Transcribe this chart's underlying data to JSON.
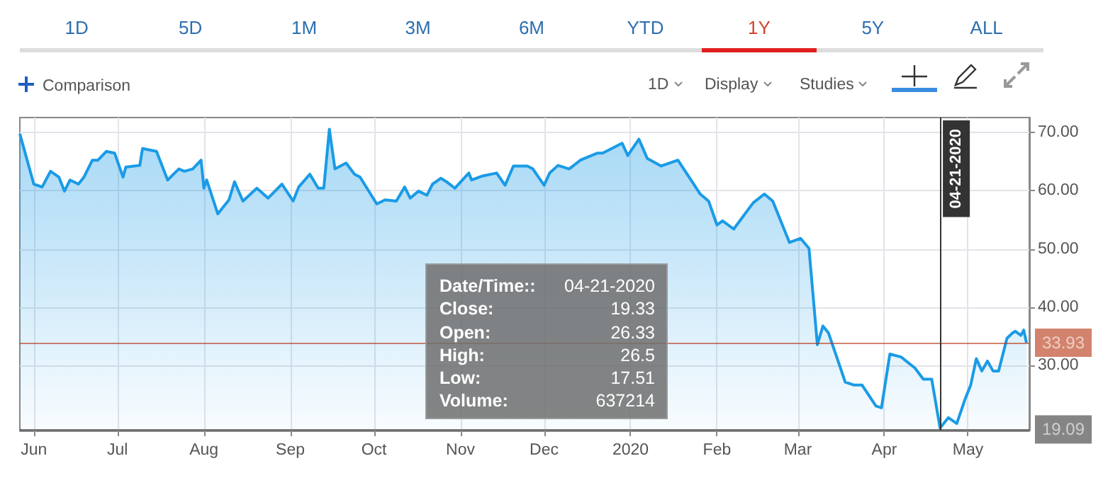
{
  "chart_data": {
    "type": "area",
    "x": [
      "2019-05-27",
      "2019-06-01",
      "2019-06-04",
      "2019-06-07",
      "2019-06-10",
      "2019-06-12",
      "2019-06-14",
      "2019-06-17",
      "2019-06-19",
      "2019-06-22",
      "2019-06-24",
      "2019-06-27",
      "2019-06-30",
      "2019-07-03",
      "2019-07-04",
      "2019-07-07",
      "2019-07-09",
      "2019-07-10",
      "2019-07-15",
      "2019-07-19",
      "2019-07-23",
      "2019-07-25",
      "2019-07-28",
      "2019-07-31",
      "2019-08-01",
      "2019-08-02",
      "2019-08-06",
      "2019-08-10",
      "2019-08-12",
      "2019-08-15",
      "2019-08-20",
      "2019-08-24",
      "2019-08-29",
      "2019-09-02",
      "2019-09-04",
      "2019-09-08",
      "2019-09-11",
      "2019-09-13",
      "2019-09-15",
      "2019-09-17",
      "2019-09-21",
      "2019-09-24",
      "2019-09-26",
      "2019-10-02",
      "2019-10-05",
      "2019-10-09",
      "2019-10-12",
      "2019-10-14",
      "2019-10-17",
      "2019-10-20",
      "2019-10-22",
      "2019-10-25",
      "2019-10-27",
      "2019-10-30",
      "2019-11-04",
      "2019-11-05",
      "2019-11-09",
      "2019-11-14",
      "2019-11-17",
      "2019-11-20",
      "2019-11-25",
      "2019-11-27",
      "2019-12-01",
      "2019-12-03",
      "2019-12-06",
      "2019-12-10",
      "2019-12-14",
      "2019-12-20",
      "2019-12-22",
      "2019-12-29",
      "2019-12-31",
      "2020-01-04",
      "2020-01-07",
      "2020-01-12",
      "2020-01-18",
      "2020-01-26",
      "2020-01-29",
      "2020-02-01",
      "2020-02-03",
      "2020-02-07",
      "2020-02-14",
      "2020-02-18",
      "2020-02-21",
      "2020-02-27",
      "2020-03-02",
      "2020-03-05",
      "2020-03-08",
      "2020-03-10",
      "2020-03-12",
      "2020-03-14",
      "2020-03-18",
      "2020-03-21",
      "2020-03-24",
      "2020-03-29",
      "2020-03-31",
      "2020-04-03",
      "2020-04-07",
      "2020-04-12",
      "2020-04-15",
      "2020-04-18",
      "2020-04-21",
      "2020-04-24",
      "2020-04-27",
      "2020-04-30",
      "2020-05-02",
      "2020-05-04",
      "2020-05-06",
      "2020-05-08",
      "2020-05-10",
      "2020-05-12",
      "2020-05-15",
      "2020-05-17",
      "2020-05-18",
      "2020-05-20",
      "2020-05-21",
      "2020-05-22"
    ],
    "series": [
      {
        "color": "#1a9be6",
        "values": [
          69.7,
          61.1,
          60.6,
          63.3,
          62.3,
          59.9,
          61.8,
          61.1,
          62.3,
          65.2,
          65.2,
          66.7,
          66.4,
          62.3,
          64.0,
          64.2,
          64.3,
          67.2,
          66.7,
          61.8,
          63.7,
          63.3,
          63.7,
          65.2,
          60.4,
          61.8,
          56.0,
          58.4,
          61.5,
          58.2,
          60.4,
          58.7,
          61.1,
          58.2,
          60.6,
          62.8,
          60.4,
          60.4,
          70.5,
          63.7,
          64.7,
          62.8,
          62.3,
          57.7,
          58.4,
          58.2,
          60.6,
          58.7,
          59.9,
          59.2,
          61.1,
          62.1,
          61.5,
          60.4,
          63.0,
          61.8,
          62.5,
          63.0,
          60.9,
          64.2,
          64.2,
          63.7,
          60.9,
          63.0,
          64.3,
          63.7,
          65.2,
          66.4,
          66.4,
          68.1,
          66.0,
          68.8,
          65.5,
          64.2,
          65.2,
          59.4,
          58.2,
          54.1,
          54.8,
          53.4,
          57.9,
          59.4,
          58.2,
          51.1,
          51.8,
          50.1,
          33.6,
          36.8,
          35.6,
          32.8,
          27.2,
          26.7,
          26.7,
          23.1,
          22.8,
          32.0,
          31.5,
          29.6,
          27.7,
          27.7,
          19.33,
          21.1,
          20.1,
          24.3,
          26.7,
          31.2,
          29.1,
          30.8,
          29.1,
          29.1,
          34.7,
          35.6,
          35.9,
          35.2,
          36.1,
          33.93
        ]
      }
    ],
    "xlim": [
      "2019-05-27",
      "2020-05-23"
    ],
    "xticks": [
      {
        "value": "2019-06-01",
        "label": "Jun"
      },
      {
        "value": "2019-07-01",
        "label": "Jul"
      },
      {
        "value": "2019-08-01",
        "label": "Aug"
      },
      {
        "value": "2019-09-01",
        "label": "Sep"
      },
      {
        "value": "2019-10-01",
        "label": "Oct"
      },
      {
        "value": "2019-11-01",
        "label": "Nov"
      },
      {
        "value": "2019-12-01",
        "label": "Dec"
      },
      {
        "value": "2020-01-01",
        "label": "2020"
      },
      {
        "value": "2020-02-01",
        "label": "Feb"
      },
      {
        "value": "2020-03-01",
        "label": "Mar"
      },
      {
        "value": "2020-04-01",
        "label": "Apr"
      },
      {
        "value": "2020-05-01",
        "label": "May"
      }
    ],
    "ylim": [
      18.9,
      72.5
    ],
    "yticks": [
      {
        "value": 30,
        "label": "30.00"
      },
      {
        "value": 40,
        "label": "40.00"
      },
      {
        "value": 50,
        "label": "50.00"
      },
      {
        "value": 60,
        "label": "60.00"
      },
      {
        "value": 70,
        "label": "70.00"
      }
    ],
    "grid": true,
    "ref_lines": [
      {
        "axis": "y",
        "value": 33.93,
        "label": "33.93",
        "color": "#b5300b"
      },
      {
        "axis": "y",
        "value": 19.09,
        "label": "19.09",
        "color": "#333333"
      },
      {
        "axis": "x",
        "value": "2020-04-21",
        "label": "04-21-2020",
        "color": "#333333"
      }
    ],
    "annotations": [
      "1D",
      "5D",
      "1M",
      "3M",
      "6M",
      "YTD",
      "1Y",
      "5Y",
      "ALL",
      "Comparison",
      "1D",
      "Display",
      "Studies",
      "Date/Time:: 04-21-2020",
      "Close: 19.33",
      "Open: 26.33",
      "High: 26.5",
      "Low: 17.51",
      "Volume: 637214"
    ]
  }
}
